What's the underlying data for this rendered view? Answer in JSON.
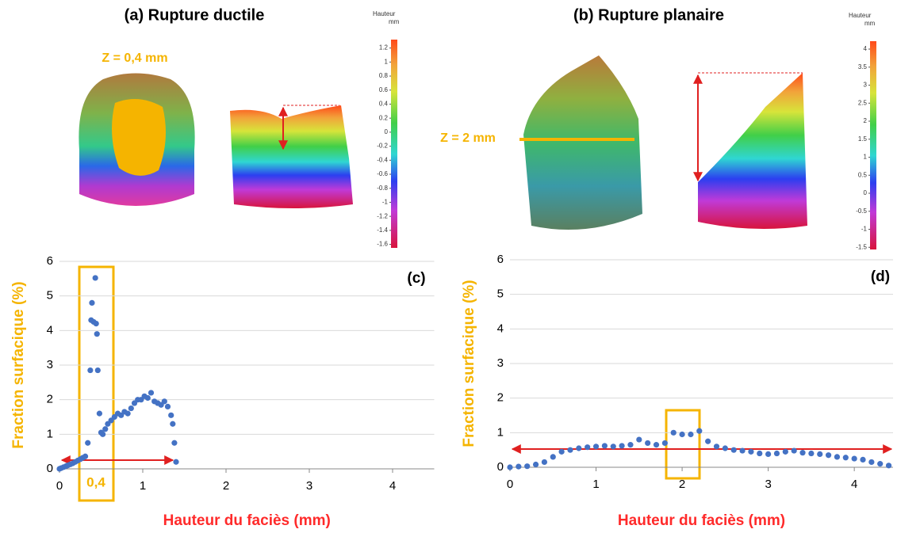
{
  "panels": [
    {
      "title": "(a) Rupture ductile",
      "z_label": "Z = 0,4 mm",
      "colorbar": {
        "title": "Hauteur",
        "unit": "mm",
        "lim": [
          -1.65,
          1.32
        ],
        "ticks": [
          1.2,
          1,
          0.8,
          0.6,
          0.4,
          0.2,
          0,
          -0.2,
          -0.4,
          -0.6,
          -0.8,
          -1,
          -1.2,
          -1.4,
          -1.6
        ]
      }
    },
    {
      "title": "(b) Rupture planaire",
      "z_label": "Z = 2 mm",
      "colorbar": {
        "title": "Hauteur",
        "unit": "mm",
        "lim": [
          -1.56,
          4.22
        ],
        "ticks": [
          4,
          3.5,
          3,
          2.5,
          2,
          1.5,
          1,
          0.5,
          0,
          -0.5,
          -1,
          -1.5
        ]
      }
    }
  ],
  "chart_data": [
    {
      "type": "scatter",
      "label": "(c)",
      "xlabel": "Hauteur du faciès (mm)",
      "ylabel": "Fraction surfacique (%)",
      "color": "#4472c4",
      "grid": true,
      "xlim": [
        0,
        4.5
      ],
      "ylim": [
        0,
        6
      ],
      "xticks": [
        0,
        1,
        2,
        3,
        4
      ],
      "yticks": [
        0,
        1,
        2,
        3,
        4,
        5,
        6
      ],
      "annotation": "0,4",
      "x": [
        0,
        0.02,
        0.05,
        0.08,
        0.1,
        0.13,
        0.16,
        0.19,
        0.22,
        0.25,
        0.28,
        0.31,
        0.34,
        0.37,
        0.38,
        0.39,
        0.41,
        0.43,
        0.44,
        0.45,
        0.46,
        0.48,
        0.5,
        0.52,
        0.55,
        0.58,
        0.62,
        0.66,
        0.7,
        0.74,
        0.78,
        0.82,
        0.86,
        0.9,
        0.94,
        0.98,
        1.02,
        1.06,
        1.1,
        1.14,
        1.18,
        1.22,
        1.26,
        1.3,
        1.34,
        1.36,
        1.38,
        1.4
      ],
      "values": [
        0,
        0.02,
        0.05,
        0.08,
        0.1,
        0.13,
        0.16,
        0.2,
        0.24,
        0.28,
        0.32,
        0.36,
        0.75,
        2.85,
        4.3,
        4.8,
        4.25,
        5.52,
        4.2,
        3.9,
        2.85,
        1.6,
        1.05,
        1.0,
        1.15,
        1.3,
        1.4,
        1.5,
        1.6,
        1.55,
        1.65,
        1.6,
        1.75,
        1.9,
        2.0,
        2.0,
        2.1,
        2.05,
        2.2,
        1.95,
        1.9,
        1.85,
        1.95,
        1.8,
        1.55,
        1.3,
        0.75,
        0.2
      ]
    },
    {
      "type": "scatter",
      "label": "(d)",
      "xlabel": "Hauteur du faciès (mm)",
      "ylabel": "Fraction surfacique (%)",
      "color": "#4472c4",
      "grid": true,
      "xlim": [
        0,
        4.45
      ],
      "ylim": [
        0,
        6
      ],
      "xticks": [
        0,
        1,
        2,
        3,
        4
      ],
      "yticks": [
        0,
        1,
        2,
        3,
        4,
        5,
        6
      ],
      "x": [
        0,
        0.1,
        0.2,
        0.3,
        0.4,
        0.5,
        0.6,
        0.7,
        0.8,
        0.9,
        1.0,
        1.1,
        1.2,
        1.3,
        1.4,
        1.5,
        1.6,
        1.7,
        1.8,
        1.9,
        2.0,
        2.1,
        2.2,
        2.3,
        2.4,
        2.5,
        2.6,
        2.7,
        2.8,
        2.9,
        3.0,
        3.1,
        3.2,
        3.3,
        3.4,
        3.5,
        3.6,
        3.7,
        3.8,
        3.9,
        4.0,
        4.1,
        4.2,
        4.3,
        4.4
      ],
      "values": [
        0,
        0.02,
        0.03,
        0.08,
        0.15,
        0.3,
        0.45,
        0.5,
        0.55,
        0.58,
        0.6,
        0.62,
        0.6,
        0.62,
        0.65,
        0.8,
        0.7,
        0.65,
        0.7,
        1.0,
        0.95,
        0.95,
        1.05,
        0.75,
        0.6,
        0.55,
        0.5,
        0.48,
        0.45,
        0.4,
        0.38,
        0.4,
        0.45,
        0.48,
        0.42,
        0.4,
        0.38,
        0.35,
        0.3,
        0.28,
        0.25,
        0.22,
        0.15,
        0.1,
        0.05
      ]
    }
  ]
}
